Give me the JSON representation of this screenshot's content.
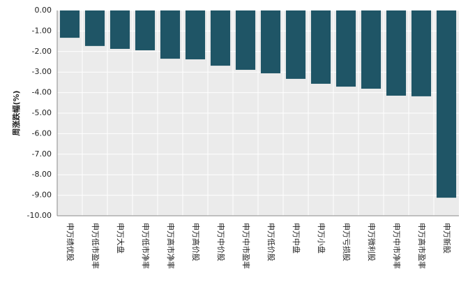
{
  "chart_data": {
    "type": "bar",
    "ylabel": "周涨跌幅(%)",
    "categories": [
      "申万绩优股",
      "申万低市盈率",
      "申万大盘",
      "申万低市净率",
      "申万高市净率",
      "申万高价股",
      "申万中价股",
      "申万中市盈率",
      "申万低价股",
      "申万中盘",
      "申万小盘",
      "申万亏损股",
      "申万微利股",
      "申万中市净率",
      "申万高市盈率",
      "申万新股"
    ],
    "values": [
      -1.33,
      -1.73,
      -1.87,
      -1.94,
      -2.35,
      -2.38,
      -2.69,
      -2.89,
      -3.06,
      -3.33,
      -3.57,
      -3.71,
      -3.81,
      -4.15,
      -4.18,
      -9.12
    ],
    "color": "#1f5566",
    "ylim": [
      -10,
      0
    ],
    "yticks": [
      {
        "value": 0,
        "label": "0.00"
      },
      {
        "value": -1,
        "label": "-1.00"
      },
      {
        "value": -2,
        "label": "-2.00"
      },
      {
        "value": -3,
        "label": "-3.00"
      },
      {
        "value": -4,
        "label": "-4.00"
      },
      {
        "value": -5,
        "label": "-5.00"
      },
      {
        "value": -6,
        "label": "-6.00"
      },
      {
        "value": -7,
        "label": "-7.00"
      },
      {
        "value": -8,
        "label": "-8.00"
      },
      {
        "value": -9,
        "label": "-9.00"
      },
      {
        "value": -10,
        "label": "-10.00"
      }
    ],
    "grid": true
  }
}
